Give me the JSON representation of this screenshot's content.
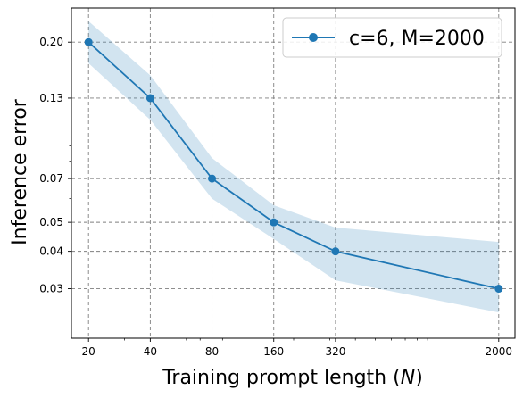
{
  "chart_data": {
    "type": "line",
    "xscale": "log",
    "yscale": "log",
    "xlabel_prefix": "Training prompt length (",
    "xlabel_var": "N",
    "xlabel_suffix": ")",
    "ylabel": "Inference error",
    "xticks": [
      20,
      40,
      80,
      160,
      320,
      2000
    ],
    "xtick_labels": [
      "20",
      "40",
      "80",
      "160",
      "320",
      "2000"
    ],
    "yticks": [
      0.03,
      0.04,
      0.05,
      0.07,
      0.13,
      0.2
    ],
    "ytick_labels": [
      "0.03",
      "0.04",
      "0.05",
      "0.07",
      "0.13",
      "0.20"
    ],
    "xlim": [
      16.5,
      2400
    ],
    "ylim": [
      0.0205,
      0.26
    ],
    "grid": true,
    "legend_position": "top-right",
    "series": [
      {
        "name": "c=6, M=2000",
        "color": "#1f77b4",
        "marker": "circle",
        "x": [
          20,
          40,
          80,
          160,
          320,
          2000
        ],
        "y": [
          0.2,
          0.13,
          0.07,
          0.05,
          0.04,
          0.03
        ],
        "band_lower": [
          0.17,
          0.11,
          0.06,
          0.044,
          0.032,
          0.025
        ],
        "band_upper": [
          0.235,
          0.155,
          0.082,
          0.057,
          0.048,
          0.043
        ]
      }
    ]
  }
}
